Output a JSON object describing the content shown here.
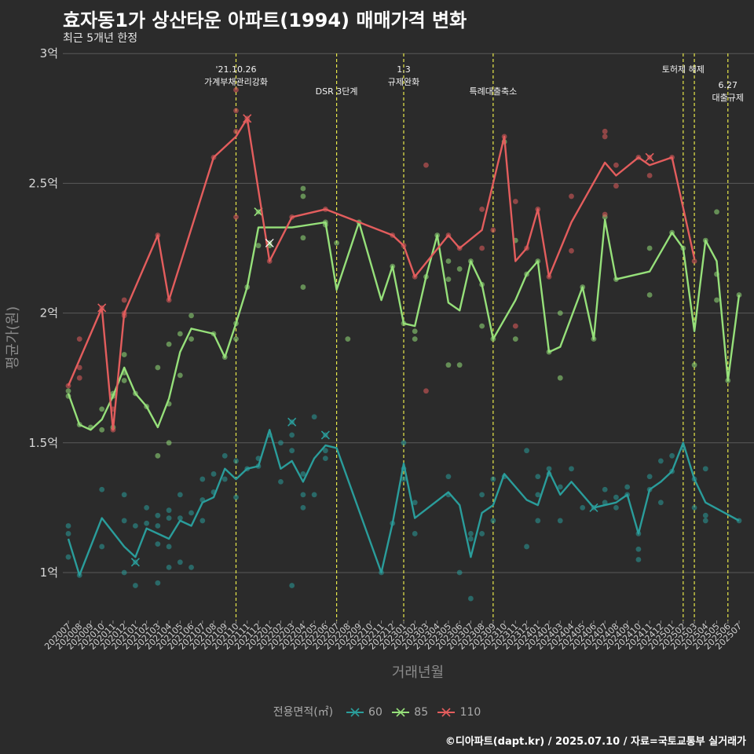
{
  "title": "효자동1가 상산타운 아파트(1994) 매매가격 변화",
  "subtitle": "최근 5개년 한정",
  "caption": "©디아파트(dapt.kr) / 2025.07.10 / 자료=국토교통부 실거래가",
  "legend_title": "전용면적(㎡)",
  "chart_data": {
    "type": "line",
    "xlabel": "거래년월",
    "ylabel": "평균가(원)",
    "categories": [
      "202007",
      "202008",
      "202009",
      "202010",
      "202011",
      "202012",
      "202101",
      "202102",
      "202103",
      "202104",
      "202105",
      "202106",
      "202107",
      "202108",
      "202109",
      "202110",
      "202111",
      "202112",
      "202201",
      "202202",
      "202203",
      "202204",
      "202205",
      "202206",
      "202207",
      "202208",
      "202209",
      "202210",
      "202211",
      "202212",
      "202301",
      "202302",
      "202303",
      "202304",
      "202305",
      "202306",
      "202307",
      "202308",
      "202309",
      "202310",
      "202311",
      "202312",
      "202401",
      "202402",
      "202403",
      "202404",
      "202405",
      "202406",
      "202407",
      "202408",
      "202409",
      "202410",
      "202411",
      "202412",
      "202501",
      "202502",
      "202503",
      "202504",
      "202505",
      "202506",
      "202507"
    ],
    "y_ticks": [
      1.0,
      1.5,
      2.0,
      2.5,
      3.0
    ],
    "y_tick_labels": [
      "1억",
      "1.5억",
      "2억",
      "2.5억",
      "3억"
    ],
    "ylim": [
      0.8,
      3.05
    ],
    "grid": true,
    "legend_position": "bottom",
    "series": [
      {
        "name": "60",
        "color": "#2a9d9b",
        "values": [
          1.13,
          0.99,
          null,
          1.21,
          null,
          1.1,
          1.06,
          1.17,
          1.15,
          1.13,
          1.2,
          1.18,
          1.27,
          1.29,
          1.4,
          1.36,
          1.4,
          1.41,
          1.55,
          1.4,
          1.43,
          1.35,
          1.44,
          1.49,
          1.48,
          null,
          null,
          null,
          1.0,
          1.19,
          1.42,
          1.21,
          null,
          null,
          1.31,
          1.26,
          1.06,
          1.23,
          1.26,
          1.38,
          null,
          1.28,
          1.26,
          1.39,
          1.3,
          1.35,
          null,
          1.25,
          1.26,
          1.27,
          1.3,
          1.15,
          1.32,
          1.35,
          1.39,
          1.5,
          1.36,
          1.27,
          null,
          null,
          1.2
        ],
        "points": [
          [
            0,
            1.18
          ],
          [
            0,
            1.15
          ],
          [
            0,
            1.06
          ],
          [
            1,
            0.99
          ],
          [
            3,
            1.32
          ],
          [
            3,
            1.1
          ],
          [
            5,
            1.3
          ],
          [
            5,
            1.2
          ],
          [
            5,
            1.0
          ],
          [
            6,
            1.18
          ],
          [
            6,
            0.95
          ],
          [
            6,
            1.04
          ],
          [
            7,
            1.25
          ],
          [
            7,
            1.19
          ],
          [
            8,
            1.22
          ],
          [
            8,
            1.18
          ],
          [
            8,
            1.11
          ],
          [
            8,
            0.96
          ],
          [
            9,
            1.24
          ],
          [
            9,
            1.21
          ],
          [
            9,
            1.1
          ],
          [
            9,
            1.02
          ],
          [
            10,
            1.3
          ],
          [
            10,
            1.21
          ],
          [
            10,
            1.04
          ],
          [
            11,
            1.23
          ],
          [
            11,
            1.02
          ],
          [
            12,
            1.36
          ],
          [
            12,
            1.28
          ],
          [
            12,
            1.2
          ],
          [
            13,
            1.38
          ],
          [
            13,
            1.31
          ],
          [
            14,
            1.45
          ],
          [
            14,
            1.36
          ],
          [
            15,
            1.43
          ],
          [
            15,
            1.29
          ],
          [
            16,
            1.4
          ],
          [
            17,
            1.44
          ],
          [
            17,
            1.41
          ],
          [
            18,
            1.53
          ],
          [
            19,
            1.5
          ],
          [
            19,
            1.35
          ],
          [
            20,
            1.58
          ],
          [
            20,
            1.53
          ],
          [
            20,
            1.47
          ],
          [
            20,
            0.95
          ],
          [
            21,
            1.38
          ],
          [
            21,
            1.3
          ],
          [
            21,
            1.25
          ],
          [
            22,
            1.6
          ],
          [
            22,
            1.3
          ],
          [
            23,
            1.53
          ],
          [
            23,
            1.47
          ],
          [
            23,
            1.44
          ],
          [
            28,
            1.0
          ],
          [
            29,
            1.19
          ],
          [
            30,
            1.5
          ],
          [
            30,
            1.4
          ],
          [
            30,
            1.36
          ],
          [
            31,
            1.27
          ],
          [
            31,
            1.15
          ],
          [
            34,
            1.37
          ],
          [
            34,
            1.3
          ],
          [
            35,
            1.0
          ],
          [
            36,
            1.15
          ],
          [
            36,
            1.13
          ],
          [
            36,
            0.9
          ],
          [
            37,
            1.3
          ],
          [
            37,
            1.15
          ],
          [
            38,
            1.2
          ],
          [
            38,
            1.36
          ],
          [
            39,
            1.37
          ],
          [
            41,
            1.47
          ],
          [
            41,
            1.1
          ],
          [
            42,
            1.37
          ],
          [
            42,
            1.2
          ],
          [
            42,
            1.3
          ],
          [
            43,
            1.4
          ],
          [
            43,
            1.38
          ],
          [
            44,
            1.2
          ],
          [
            44,
            1.33
          ],
          [
            45,
            1.4
          ],
          [
            46,
            1.25
          ],
          [
            47,
            1.25
          ],
          [
            48,
            1.32
          ],
          [
            48,
            1.27
          ],
          [
            49,
            1.29
          ],
          [
            49,
            1.25
          ],
          [
            50,
            1.33
          ],
          [
            50,
            1.3
          ],
          [
            51,
            1.09
          ],
          [
            51,
            1.05
          ],
          [
            51,
            1.15
          ],
          [
            52,
            1.37
          ],
          [
            52,
            1.32
          ],
          [
            53,
            1.43
          ],
          [
            53,
            1.27
          ],
          [
            54,
            1.45
          ],
          [
            54,
            1.39
          ],
          [
            55,
            1.48
          ],
          [
            56,
            1.36
          ],
          [
            56,
            1.25
          ],
          [
            57,
            1.4
          ],
          [
            57,
            1.22
          ],
          [
            57,
            1.2
          ],
          [
            60,
            1.2
          ]
        ],
        "cancelled": [
          [
            6,
            1.04
          ],
          [
            20,
            1.58
          ],
          [
            23,
            1.53
          ],
          [
            47,
            1.25
          ]
        ]
      },
      {
        "name": "85",
        "color": "#96e07a",
        "values": [
          1.69,
          1.57,
          1.55,
          1.59,
          1.68,
          1.79,
          1.69,
          1.64,
          1.56,
          1.67,
          1.85,
          1.94,
          null,
          1.92,
          1.83,
          1.96,
          2.1,
          2.33,
          null,
          null,
          2.33,
          null,
          null,
          2.35,
          2.09,
          null,
          2.35,
          null,
          2.05,
          2.18,
          1.96,
          1.95,
          2.14,
          2.3,
          2.04,
          2.01,
          2.2,
          2.11,
          1.9,
          null,
          2.05,
          2.15,
          2.2,
          1.85,
          1.87,
          null,
          2.1,
          1.9,
          2.36,
          2.13,
          null,
          null,
          2.16,
          null,
          2.31,
          2.25,
          1.93,
          2.28,
          2.2,
          1.74,
          2.07
        ],
        "points": [
          [
            0,
            1.7
          ],
          [
            0,
            1.68
          ],
          [
            1,
            1.57
          ],
          [
            2,
            1.56
          ],
          [
            3,
            1.63
          ],
          [
            3,
            1.55
          ],
          [
            4,
            1.69
          ],
          [
            4,
            1.68
          ],
          [
            4,
            1.56
          ],
          [
            5,
            1.84
          ],
          [
            5,
            1.74
          ],
          [
            5,
            1.77
          ],
          [
            6,
            1.69
          ],
          [
            7,
            1.64
          ],
          [
            8,
            1.79
          ],
          [
            8,
            1.45
          ],
          [
            9,
            1.88
          ],
          [
            9,
            1.65
          ],
          [
            9,
            1.5
          ],
          [
            10,
            1.92
          ],
          [
            10,
            1.76
          ],
          [
            11,
            1.99
          ],
          [
            11,
            1.9
          ],
          [
            13,
            1.92
          ],
          [
            14,
            1.83
          ],
          [
            15,
            1.96
          ],
          [
            15,
            1.9
          ],
          [
            16,
            2.1
          ],
          [
            17,
            2.39
          ],
          [
            17,
            2.26
          ],
          [
            18,
            2.27
          ],
          [
            18,
            2.26
          ],
          [
            21,
            2.48
          ],
          [
            21,
            2.45
          ],
          [
            21,
            2.29
          ],
          [
            21,
            2.1
          ],
          [
            23,
            2.35
          ],
          [
            23,
            2.34
          ],
          [
            24,
            2.27
          ],
          [
            25,
            1.9
          ],
          [
            26,
            2.35
          ],
          [
            29,
            2.18
          ],
          [
            30,
            1.96
          ],
          [
            31,
            1.9
          ],
          [
            31,
            1.93
          ],
          [
            32,
            2.14
          ],
          [
            33,
            2.3
          ],
          [
            34,
            2.2
          ],
          [
            34,
            2.13
          ],
          [
            34,
            1.8
          ],
          [
            35,
            2.17
          ],
          [
            35,
            1.8
          ],
          [
            36,
            2.2
          ],
          [
            37,
            1.95
          ],
          [
            37,
            2.11
          ],
          [
            38,
            1.9
          ],
          [
            39,
            2.66
          ],
          [
            40,
            2.28
          ],
          [
            40,
            1.9
          ],
          [
            41,
            2.15
          ],
          [
            42,
            2.2
          ],
          [
            43,
            1.85
          ],
          [
            44,
            2.0
          ],
          [
            44,
            1.75
          ],
          [
            46,
            2.1
          ],
          [
            47,
            1.9
          ],
          [
            48,
            2.37
          ],
          [
            49,
            2.13
          ],
          [
            52,
            2.25
          ],
          [
            52,
            2.07
          ],
          [
            54,
            2.31
          ],
          [
            55,
            2.25
          ],
          [
            56,
            1.8
          ],
          [
            57,
            2.28
          ],
          [
            58,
            2.39
          ],
          [
            58,
            2.15
          ],
          [
            58,
            2.05
          ],
          [
            59,
            1.74
          ],
          [
            60,
            2.07
          ]
        ],
        "cancelled": [
          [
            17,
            2.39
          ]
        ]
      },
      {
        "name": "110",
        "color": "#e35d5d",
        "values": [
          1.72,
          null,
          null,
          2.02,
          1.55,
          2.0,
          null,
          null,
          2.3,
          2.05,
          null,
          null,
          null,
          2.6,
          null,
          2.68,
          2.75,
          null,
          2.2,
          null,
          2.37,
          null,
          null,
          2.4,
          null,
          null,
          null,
          null,
          null,
          2.3,
          2.26,
          2.14,
          null,
          null,
          2.3,
          2.25,
          null,
          2.32,
          null,
          2.68,
          2.2,
          2.25,
          2.4,
          2.14,
          null,
          2.35,
          null,
          null,
          2.58,
          2.53,
          null,
          2.6,
          2.57,
          null,
          2.6,
          null,
          2.21,
          null,
          null,
          null,
          null
        ],
        "points": [
          [
            0,
            1.72
          ],
          [
            1,
            1.9
          ],
          [
            1,
            1.79
          ],
          [
            1,
            1.75
          ],
          [
            3,
            2.02
          ],
          [
            4,
            1.63
          ],
          [
            4,
            1.55
          ],
          [
            5,
            2.05
          ],
          [
            5,
            2.0
          ],
          [
            5,
            1.99
          ],
          [
            8,
            2.3
          ],
          [
            9,
            2.05
          ],
          [
            13,
            2.6
          ],
          [
            15,
            2.86
          ],
          [
            15,
            2.78
          ],
          [
            15,
            2.7
          ],
          [
            15,
            2.37
          ],
          [
            16,
            2.75
          ],
          [
            16,
            2.74
          ],
          [
            18,
            2.2
          ],
          [
            20,
            2.37
          ],
          [
            23,
            2.4
          ],
          [
            29,
            2.3
          ],
          [
            30,
            2.26
          ],
          [
            31,
            2.14
          ],
          [
            32,
            2.57
          ],
          [
            32,
            1.7
          ],
          [
            34,
            2.3
          ],
          [
            35,
            2.25
          ],
          [
            37,
            2.4
          ],
          [
            37,
            2.25
          ],
          [
            38,
            2.32
          ],
          [
            39,
            2.68
          ],
          [
            40,
            2.43
          ],
          [
            40,
            1.95
          ],
          [
            41,
            2.25
          ],
          [
            42,
            2.4
          ],
          [
            43,
            2.14
          ],
          [
            45,
            2.45
          ],
          [
            45,
            2.24
          ],
          [
            48,
            2.7
          ],
          [
            48,
            2.68
          ],
          [
            48,
            2.38
          ],
          [
            49,
            2.57
          ],
          [
            49,
            2.49
          ],
          [
            51,
            2.6
          ],
          [
            52,
            2.6
          ],
          [
            52,
            2.53
          ],
          [
            54,
            2.6
          ],
          [
            56,
            2.2
          ]
        ],
        "cancelled": [
          [
            3,
            2.02
          ],
          [
            16,
            2.75
          ],
          [
            52,
            2.6
          ]
        ]
      }
    ],
    "white_cancelled": [
      [
        18,
        2.27
      ]
    ],
    "annotations": [
      {
        "x": 15,
        "lines": [
          "'21.10.26",
          "가계부채관리강화"
        ],
        "label_level": 0
      },
      {
        "x": 24,
        "lines": [
          "DSR 3단계"
        ],
        "label_level": 1
      },
      {
        "x": 30,
        "lines": [
          "1.3",
          "규제완화"
        ],
        "label_level": 0
      },
      {
        "x": 38,
        "lines": [
          "특례대출축소"
        ],
        "label_level": 1
      },
      {
        "x": 55,
        "lines": [
          "토허제 해제"
        ],
        "label_level": 0
      },
      {
        "x": 59,
        "lines": [
          "6.27",
          "대출규제"
        ],
        "label_level": 2
      }
    ],
    "annotation_extra_line_x": 56,
    "annotation_color": "#e8e84a"
  }
}
